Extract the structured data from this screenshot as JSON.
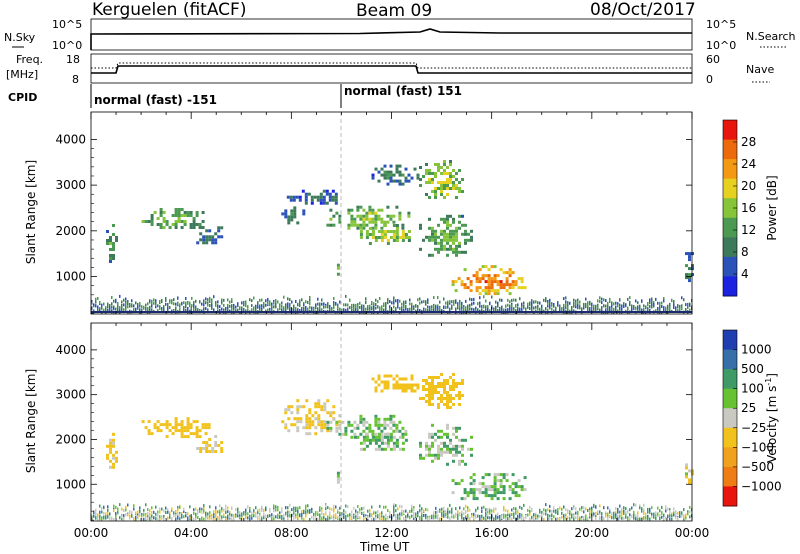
{
  "header": {
    "station": "Kerguelen (fitACF)",
    "beam": "Beam 09",
    "date": "08/Oct/2017"
  },
  "strip1": {
    "left_label": "N.Sky",
    "right_label": "N.Search",
    "left_ticks": [
      "10^5",
      "10^0"
    ],
    "right_ticks": [
      "10^5",
      "10^0"
    ]
  },
  "strip2": {
    "left_label_1": "Freq.",
    "left_label_2": "[MHz]",
    "right_label": "Nave",
    "left_ticks": [
      "18",
      "8"
    ],
    "right_ticks": [
      "60",
      "0"
    ]
  },
  "cpid": {
    "label": "CPID",
    "segments": [
      {
        "name": "normal (fast) -151",
        "start_hour": 0
      },
      {
        "name": "normal (fast) 151",
        "start_hour": 10
      }
    ]
  },
  "x_axis": {
    "label": "Time UT",
    "ticks": [
      "00:00",
      "04:00",
      "08:00",
      "12:00",
      "16:00",
      "20:00",
      "00:00"
    ],
    "tick_hours": [
      0,
      4,
      8,
      12,
      16,
      20,
      24
    ],
    "range": [
      0,
      24
    ]
  },
  "power_panel": {
    "ylabel": "Slant Range [km]",
    "y_ticks": [
      "1000",
      "2000",
      "3000",
      "4000"
    ],
    "colorbar_label": "Power [dB]",
    "colorbar_ticks": [
      "28",
      "24",
      "20",
      "16",
      "12",
      "8",
      "4"
    ]
  },
  "velocity_panel": {
    "ylabel": "Slant Range [km]",
    "y_ticks": [
      "1000",
      "2000",
      "3000",
      "4000"
    ],
    "colorbar_label": "Velocity",
    "colorbar_unit": "[m s",
    "colorbar_unit_sup": "-1",
    "colorbar_unit_end": "]",
    "colorbar_ticks": [
      "1000",
      "500",
      "100",
      "25",
      "−25",
      "−100",
      "−500",
      "−1000"
    ]
  },
  "colors": {
    "power_scale": [
      "#1b22e0",
      "#2a52b8",
      "#3c7a5a",
      "#4c9a52",
      "#86c43a",
      "#e6d020",
      "#f39a12",
      "#ec6a0c",
      "#e8150f"
    ],
    "velocity_scale": [
      "#1f3fb0",
      "#3770a8",
      "#3f9a66",
      "#66c233",
      "#c9c9c1",
      "#f2c21c",
      "#f0a21e",
      "#ef7d16",
      "#e8150f"
    ]
  },
  "chart_data": [
    {
      "type": "heatmap",
      "title": "Power",
      "x_unit": "hours UT",
      "y_unit": "km",
      "xlim": [
        0,
        24
      ],
      "ylim": [
        180,
        4600
      ],
      "zlim": [
        0,
        32
      ],
      "regions": [
        {
          "t0": 0.6,
          "t1": 1.0,
          "r0": 1350,
          "r1": 2150,
          "level": 12
        },
        {
          "t0": 1.9,
          "t1": 4.7,
          "r0": 2050,
          "r1": 2500,
          "level": 14
        },
        {
          "t0": 4.2,
          "t1": 5.3,
          "r0": 1700,
          "r1": 2100,
          "level": 6
        },
        {
          "t0": 7.6,
          "t1": 8.5,
          "r0": 2150,
          "r1": 2600,
          "level": 8
        },
        {
          "t0": 7.7,
          "t1": 10.0,
          "r0": 2600,
          "r1": 2900,
          "level": 5
        },
        {
          "t0": 9.4,
          "t1": 12.7,
          "r0": 2050,
          "r1": 2550,
          "level": 16
        },
        {
          "t0": 10.5,
          "t1": 12.8,
          "r0": 1750,
          "r1": 2150,
          "level": 18
        },
        {
          "t0": 9.7,
          "t1": 10.0,
          "r0": 1020,
          "r1": 1280,
          "level": 12
        },
        {
          "t0": 11.2,
          "t1": 13.0,
          "r0": 3050,
          "r1": 3450,
          "level": 8
        },
        {
          "t0": 13.1,
          "t1": 14.8,
          "r0": 2700,
          "r1": 3550,
          "level": 18
        },
        {
          "t0": 13.1,
          "t1": 15.2,
          "r0": 1450,
          "r1": 2350,
          "level": 14
        },
        {
          "t0": 14.4,
          "t1": 17.3,
          "r0": 650,
          "r1": 1250,
          "level": 28
        },
        {
          "t0": 23.6,
          "t1": 24.0,
          "r0": 900,
          "r1": 1600,
          "level": 8
        }
      ],
      "ground_band": {
        "r0": 180,
        "r1": 600,
        "level": 6
      }
    },
    {
      "type": "heatmap",
      "title": "Velocity",
      "x_unit": "hours UT",
      "y_unit": "km",
      "xlim": [
        0,
        24
      ],
      "ylim": [
        180,
        4600
      ],
      "zlim": [
        -1000,
        1000
      ],
      "regions": [
        {
          "t0": 0.6,
          "t1": 1.0,
          "r0": 1350,
          "r1": 2150,
          "velocity": -150
        },
        {
          "t0": 1.9,
          "t1": 4.7,
          "r0": 2050,
          "r1": 2500,
          "velocity": -200
        },
        {
          "t0": 4.2,
          "t1": 5.3,
          "r0": 1700,
          "r1": 2100,
          "velocity": -100
        },
        {
          "t0": 7.6,
          "t1": 10.0,
          "r0": 2150,
          "r1": 2900,
          "velocity": -120
        },
        {
          "t0": 9.4,
          "t1": 12.7,
          "r0": 2050,
          "r1": 2550,
          "velocity": 0
        },
        {
          "t0": 10.5,
          "t1": 12.8,
          "r0": 1750,
          "r1": 2150,
          "velocity": 0
        },
        {
          "t0": 9.7,
          "t1": 10.0,
          "r0": 1020,
          "r1": 1280,
          "velocity": 0
        },
        {
          "t0": 11.2,
          "t1": 13.0,
          "r0": 3050,
          "r1": 3450,
          "velocity": -300
        },
        {
          "t0": 13.1,
          "t1": 14.8,
          "r0": 2700,
          "r1": 3550,
          "velocity": -300
        },
        {
          "t0": 13.1,
          "t1": 15.2,
          "r0": 1450,
          "r1": 2350,
          "velocity": 0
        },
        {
          "t0": 14.4,
          "t1": 17.3,
          "r0": 650,
          "r1": 1250,
          "velocity": 20
        },
        {
          "t0": 23.6,
          "t1": 24.0,
          "r0": 900,
          "r1": 1600,
          "velocity": -60
        }
      ],
      "ground_band": {
        "r0": 180,
        "r1": 600,
        "velocity": 0
      }
    }
  ]
}
